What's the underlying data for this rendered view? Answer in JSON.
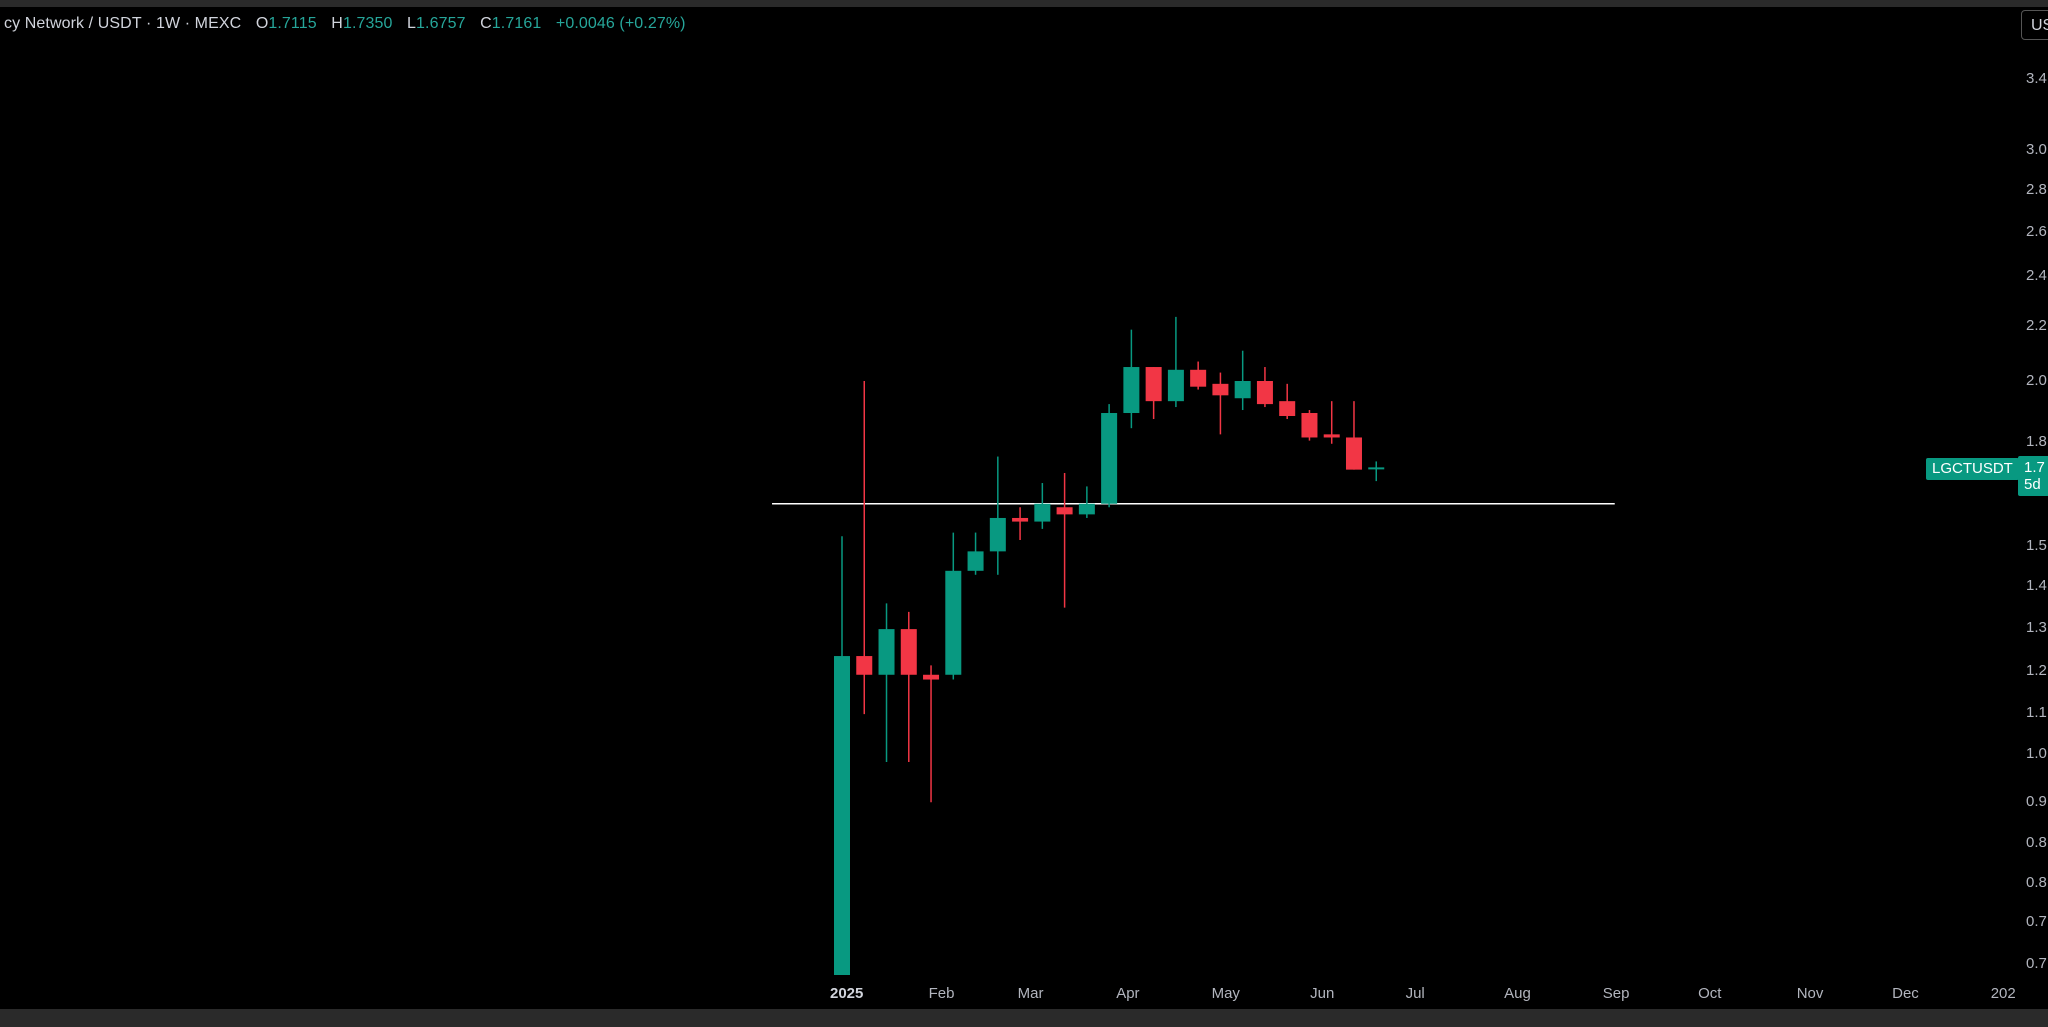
{
  "legend": {
    "symbol": "cy Network / USDT · 1W · MEXC",
    "open_label": "O",
    "open": "1.7115",
    "high_label": "H",
    "high": "1.7350",
    "low_label": "L",
    "low": "1.6757",
    "close_label": "C",
    "close": "1.7161",
    "change": "+0.0046 (+0.27%)"
  },
  "unit_button": "US",
  "symbol_label": "LGCTUSDT",
  "price_tag": {
    "price": "1.7",
    "countdown": "5d"
  },
  "colors": {
    "up": "#089981",
    "down": "#f23645",
    "background": "#000000",
    "line": "#ffffff"
  },
  "chart_data": {
    "type": "candlestick",
    "interval": "1W",
    "y_scale": "log",
    "ylim": [
      0.68,
      3.5
    ],
    "y_ticks": [
      "3.4",
      "3.0",
      "2.8",
      "2.6",
      "2.4",
      "2.2",
      "2.0",
      "1.8",
      "1.5",
      "1.4",
      "1.3",
      "1.2",
      "1.1",
      "1.0",
      "0.9",
      "0.8",
      "0.8",
      "0.7",
      "0.7"
    ],
    "x_ticks": [
      "2025",
      "Feb",
      "Mar",
      "Apr",
      "May",
      "Jun",
      "Jul",
      "Aug",
      "Sep",
      "Oct",
      "Nov",
      "Dec",
      "202"
    ],
    "x_tick_dates": [
      "2025-01-01",
      "2025-02-01",
      "2025-03-01",
      "2025-04-01",
      "2025-05-01",
      "2025-06-01",
      "2025-07-01",
      "2025-08-01",
      "2025-09-01",
      "2025-10-01",
      "2025-11-01",
      "2025-12-01",
      "2026-01-01"
    ],
    "candles": [
      {
        "date": "2025-01-01",
        "o": 0.7,
        "h": 1.52,
        "l": 0.7,
        "c": 1.23
      },
      {
        "date": "2025-01-08",
        "o": 1.23,
        "h": 2.0,
        "l": 1.11,
        "c": 1.19
      },
      {
        "date": "2025-01-15",
        "o": 1.19,
        "h": 1.35,
        "l": 1.02,
        "c": 1.29
      },
      {
        "date": "2025-01-22",
        "o": 1.29,
        "h": 1.33,
        "l": 1.02,
        "c": 1.19
      },
      {
        "date": "2025-01-29",
        "o": 1.19,
        "h": 1.21,
        "l": 0.95,
        "c": 1.18
      },
      {
        "date": "2025-02-05",
        "o": 1.19,
        "h": 1.53,
        "l": 1.18,
        "c": 1.43
      },
      {
        "date": "2025-02-12",
        "o": 1.43,
        "h": 1.53,
        "l": 1.42,
        "c": 1.48
      },
      {
        "date": "2025-02-19",
        "o": 1.48,
        "h": 1.75,
        "l": 1.42,
        "c": 1.57
      },
      {
        "date": "2025-02-26",
        "o": 1.57,
        "h": 1.6,
        "l": 1.51,
        "c": 1.56
      },
      {
        "date": "2025-03-05",
        "o": 1.56,
        "h": 1.67,
        "l": 1.54,
        "c": 1.61
      },
      {
        "date": "2025-03-12",
        "o": 1.6,
        "h": 1.7,
        "l": 1.34,
        "c": 1.58
      },
      {
        "date": "2025-03-19",
        "o": 1.58,
        "h": 1.66,
        "l": 1.57,
        "c": 1.61
      },
      {
        "date": "2025-03-26",
        "o": 1.61,
        "h": 1.92,
        "l": 1.6,
        "c": 1.89
      },
      {
        "date": "2025-04-02",
        "o": 1.89,
        "h": 2.19,
        "l": 1.84,
        "c": 2.05
      },
      {
        "date": "2025-04-09",
        "o": 2.05,
        "h": 2.05,
        "l": 1.87,
        "c": 1.93
      },
      {
        "date": "2025-04-16",
        "o": 1.93,
        "h": 2.24,
        "l": 1.91,
        "c": 2.04
      },
      {
        "date": "2025-04-23",
        "o": 2.04,
        "h": 2.07,
        "l": 1.97,
        "c": 1.98
      },
      {
        "date": "2025-04-30",
        "o": 1.99,
        "h": 2.03,
        "l": 1.82,
        "c": 1.95
      },
      {
        "date": "2025-05-07",
        "o": 1.94,
        "h": 2.11,
        "l": 1.9,
        "c": 2.0
      },
      {
        "date": "2025-05-14",
        "o": 2.0,
        "h": 2.05,
        "l": 1.91,
        "c": 1.92
      },
      {
        "date": "2025-05-21",
        "o": 1.93,
        "h": 1.99,
        "l": 1.87,
        "c": 1.88
      },
      {
        "date": "2025-05-28",
        "o": 1.89,
        "h": 1.9,
        "l": 1.8,
        "c": 1.81
      },
      {
        "date": "2025-06-04",
        "o": 1.82,
        "h": 1.93,
        "l": 1.79,
        "c": 1.81
      },
      {
        "date": "2025-06-11",
        "o": 1.81,
        "h": 1.93,
        "l": 1.71,
        "c": 1.71
      },
      {
        "date": "2025-06-18",
        "o": 1.7115,
        "h": 1.735,
        "l": 1.6757,
        "c": 1.7161
      }
    ],
    "horizontal_line": {
      "price": 1.61,
      "from": "2024-12-10",
      "to": "2025-09-01"
    }
  }
}
